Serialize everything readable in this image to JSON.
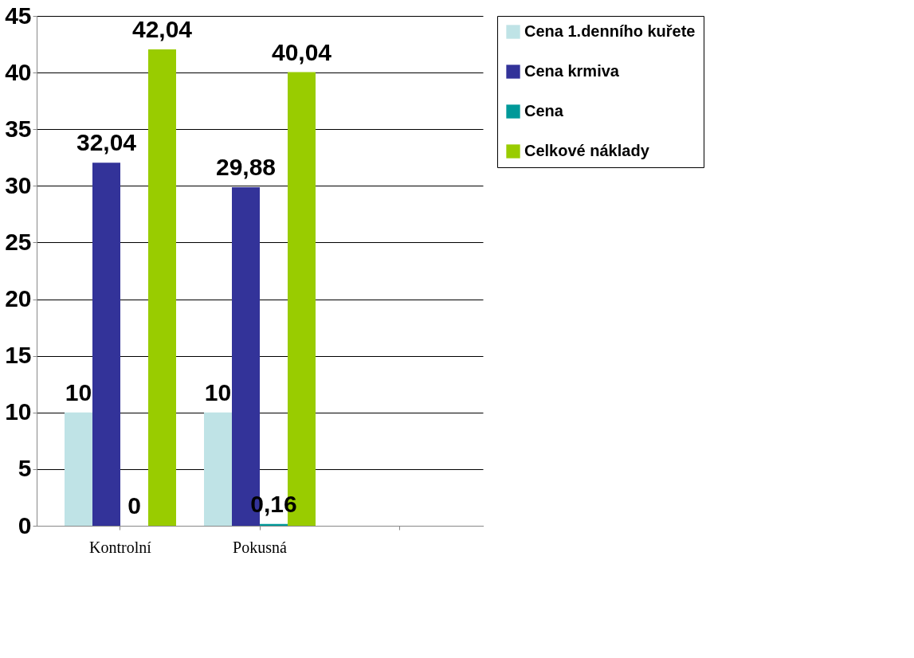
{
  "chart_data": {
    "type": "bar",
    "categories": [
      "Kontrolní",
      "Pokusná",
      null
    ],
    "series": [
      {
        "name": "Cena 1.denního kuřete",
        "color": "#bfe3e6",
        "values": [
          10,
          10,
          null
        ],
        "value_labels": [
          "10",
          "10",
          null
        ]
      },
      {
        "name": "Cena krmiva",
        "color": "#333399",
        "values": [
          32.04,
          29.88,
          null
        ],
        "value_labels": [
          "32,04",
          "29,88",
          null
        ]
      },
      {
        "name": "Cena",
        "color": "#009999",
        "values": [
          0,
          0.16,
          null
        ],
        "value_labels": [
          "0",
          "0,16",
          null
        ]
      },
      {
        "name": "Celkové náklady",
        "color": "#99cc00",
        "values": [
          42.04,
          40.04,
          null
        ],
        "value_labels": [
          "42,04",
          "40,04",
          null
        ]
      }
    ],
    "ylim": [
      0,
      45
    ],
    "yticks": [
      0,
      5,
      10,
      15,
      20,
      25,
      30,
      35,
      40,
      45
    ],
    "grid": "y",
    "legend": "top right"
  }
}
